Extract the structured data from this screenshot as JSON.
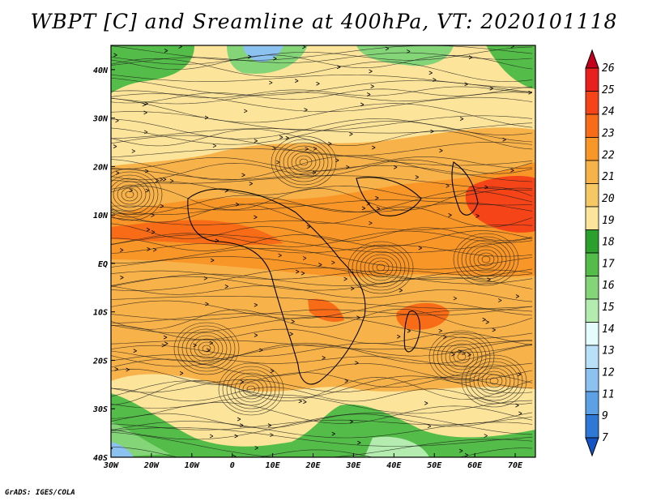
{
  "title": "WBPT [C] and Sreamline at 400hPa, VT: 2020101118",
  "credit": "GrADS: IGES/COLA",
  "map": {
    "lon_labels": [
      "30W",
      "20W",
      "10W",
      "0",
      "10E",
      "20E",
      "30E",
      "40E",
      "50E",
      "60E",
      "70E"
    ],
    "lat_labels": [
      "40N",
      "30N",
      "20N",
      "10N",
      "EQ",
      "10S",
      "20S",
      "30S",
      "40S"
    ],
    "lon_range": [
      -30,
      75
    ],
    "lat_range": [
      -40,
      45
    ]
  },
  "colorbar": {
    "labels": [
      "26",
      "25",
      "24",
      "23",
      "22",
      "21",
      "20",
      "19",
      "18",
      "17",
      "16",
      "15",
      "14",
      "13",
      "12",
      "11",
      "9",
      "7"
    ],
    "colors": [
      "#c0001c",
      "#e8201e",
      "#f44418",
      "#f86c18",
      "#f89628",
      "#f8b24a",
      "#f6c864",
      "#fce49a",
      "#2ca02c",
      "#54bc48",
      "#84d478",
      "#b4ecb0",
      "#e4fcfc",
      "#b8e0f8",
      "#8cc2f0",
      "#5ca0e6",
      "#2e78d6",
      "#1454c4"
    ]
  }
}
